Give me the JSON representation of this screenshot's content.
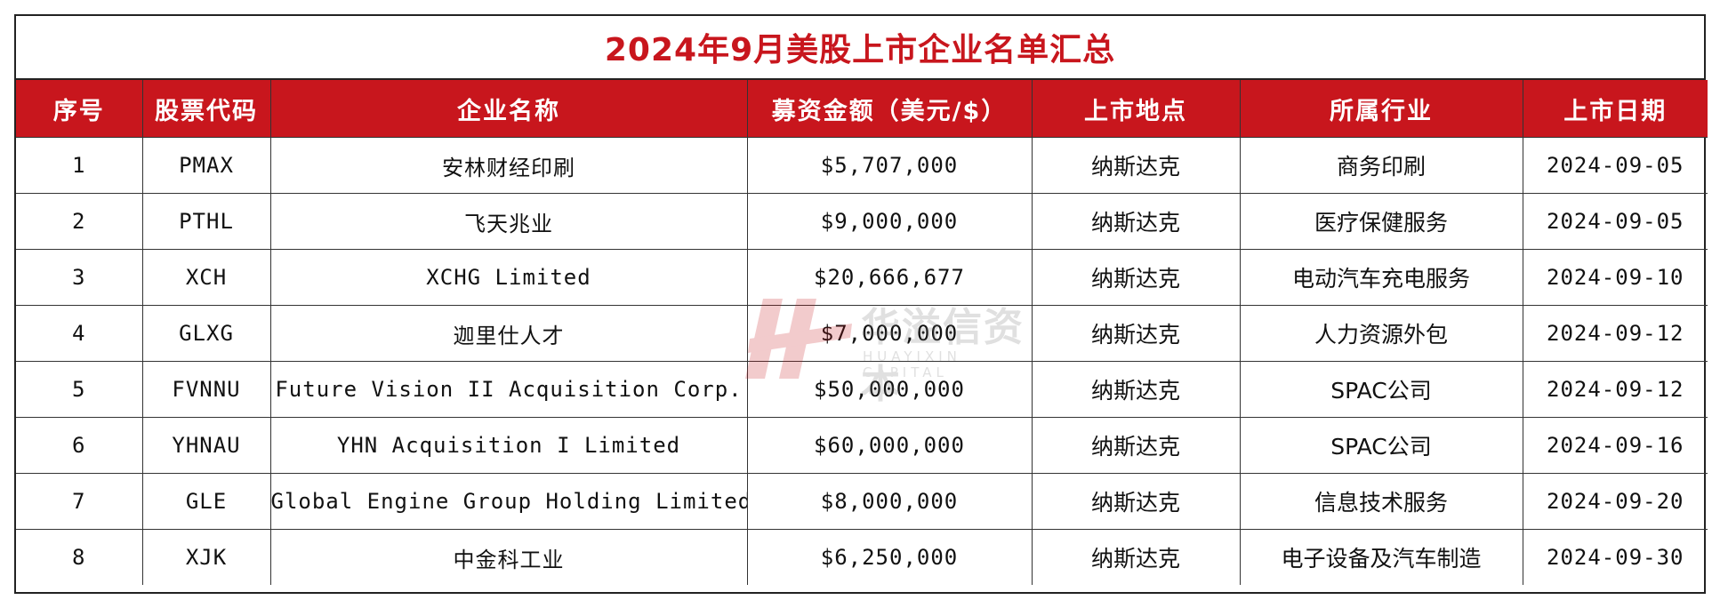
{
  "title": "2024年9月美股上市企业名单汇总",
  "columns": [
    "序号",
    "股票代码",
    "企业名称",
    "募资金额（美元/$）",
    "上市地点",
    "所属行业",
    "上市日期"
  ],
  "rows": [
    {
      "no": "1",
      "code": "PMAX",
      "name": "安林财经印刷",
      "amount": "$5,707,000",
      "venue": "纳斯达克",
      "industry": "商务印刷",
      "date": "2024-09-05"
    },
    {
      "no": "2",
      "code": "PTHL",
      "name": "飞天兆业",
      "amount": "$9,000,000",
      "venue": "纳斯达克",
      "industry": "医疗保健服务",
      "date": "2024-09-05"
    },
    {
      "no": "3",
      "code": "XCH",
      "name": "XCHG Limited",
      "amount": "$20,666,677",
      "venue": "纳斯达克",
      "industry": "电动汽车充电服务",
      "date": "2024-09-10"
    },
    {
      "no": "4",
      "code": "GLXG",
      "name": "迦里仕人才",
      "amount": "$7,000,000",
      "venue": "纳斯达克",
      "industry": "人力资源外包",
      "date": "2024-09-12"
    },
    {
      "no": "5",
      "code": "FVNNU",
      "name": "Future Vision II Acquisition Corp.",
      "amount": "$50,000,000",
      "venue": "纳斯达克",
      "industry": "SPAC公司",
      "date": "2024-09-12"
    },
    {
      "no": "6",
      "code": "YHNAU",
      "name": "YHN Acquisition I Limited",
      "amount": "$60,000,000",
      "venue": "纳斯达克",
      "industry": "SPAC公司",
      "date": "2024-09-16"
    },
    {
      "no": "7",
      "code": "GLE",
      "name": "Global Engine Group Holding Limited",
      "amount": "$8,000,000",
      "venue": "纳斯达克",
      "industry": "信息技术服务",
      "date": "2024-09-20"
    },
    {
      "no": "8",
      "code": "XJK",
      "name": "中金科工业",
      "amount": "$6,250,000",
      "venue": "纳斯达克",
      "industry": "电子设备及汽车制造",
      "date": "2024-09-30"
    }
  ],
  "watermark": {
    "text": "华溢信资本",
    "subtext": "HUAYIXIN CAPITAL"
  },
  "colors": {
    "accent": "#c8161d",
    "border": "#222222"
  }
}
